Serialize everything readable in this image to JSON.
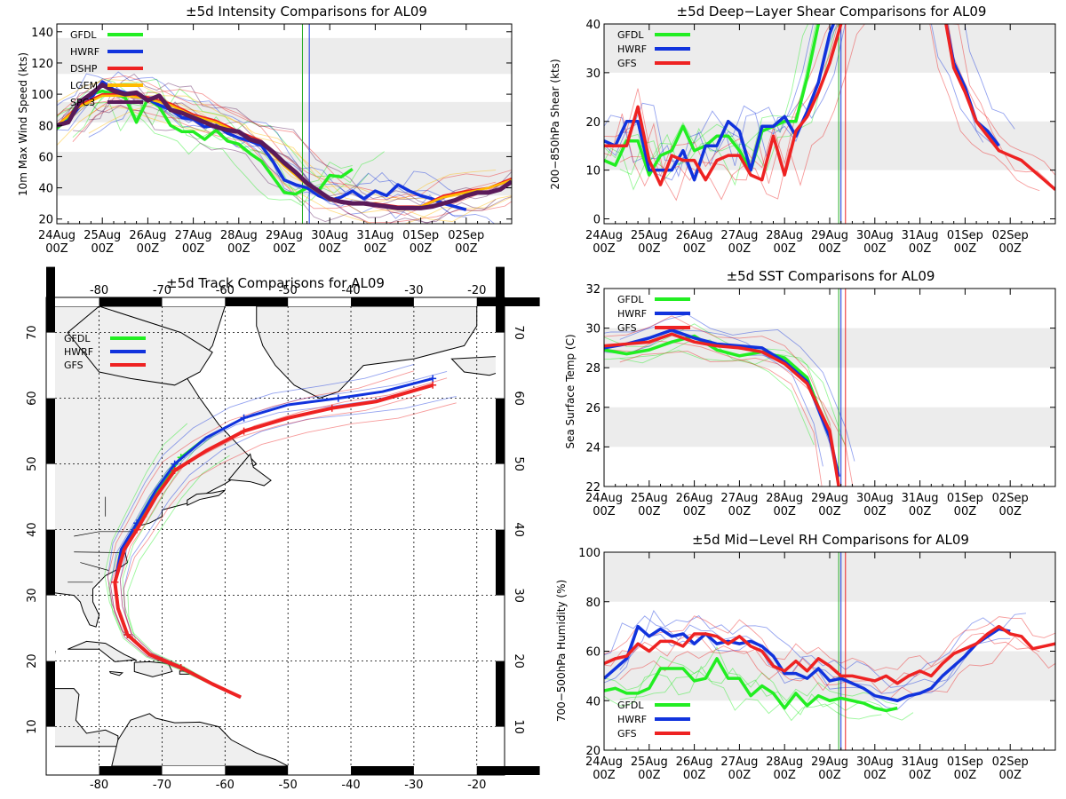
{
  "colors": {
    "GFDL": "#22ee22",
    "HWRF": "#1133dd",
    "DSHP": "#ee2222",
    "LGEM": "#ffbb00",
    "SPC3": "#5a1a5a",
    "GFS": "#ee2222"
  },
  "xlabels": [
    [
      "24Aug",
      "00Z"
    ],
    [
      "25Aug",
      "00Z"
    ],
    [
      "26Aug",
      "00Z"
    ],
    [
      "27Aug",
      "00Z"
    ],
    [
      "28Aug",
      "00Z"
    ],
    [
      "29Aug",
      "00Z"
    ],
    [
      "30Aug",
      "00Z"
    ],
    [
      "31Aug",
      "00Z"
    ],
    [
      "01Sep",
      "00Z"
    ],
    [
      "02Sep",
      "00Z"
    ]
  ],
  "chart_data": [
    {
      "id": "intensity",
      "type": "line",
      "title": "±5d Intensity Comparisons for AL09",
      "ylabel": "10m Max Wind Speed (kts)",
      "ylim": [
        17,
        145
      ],
      "yticks": [
        20,
        40,
        60,
        80,
        100,
        120,
        140
      ],
      "bands": [
        [
          35,
          63
        ],
        [
          82,
          95
        ],
        [
          113,
          136
        ]
      ],
      "xrange": [
        0,
        10
      ],
      "vlines": [
        5.4,
        5.55
      ],
      "legend": [
        "GFDL",
        "HWRF",
        "DSHP",
        "LGEM",
        "SPC3"
      ],
      "series": [
        {
          "name": "GFDL",
          "x": [
            0,
            0.25,
            0.5,
            0.75,
            1,
            1.25,
            1.5,
            1.75,
            2,
            2.25,
            2.5,
            2.75,
            3,
            3.25,
            3.5,
            3.75,
            4,
            4.25,
            4.5,
            4.75,
            5,
            5.25,
            5.5,
            5.75,
            6,
            6.25,
            6.5
          ],
          "values": [
            78,
            85,
            95,
            100,
            102,
            100,
            98,
            82,
            97,
            92,
            80,
            76,
            76,
            71,
            77,
            70,
            68,
            62,
            57,
            47,
            37,
            36,
            40,
            38,
            48,
            47,
            52
          ]
        },
        {
          "name": "HWRF",
          "x": [
            0,
            0.25,
            0.5,
            0.75,
            1,
            1.25,
            1.5,
            1.75,
            2,
            2.25,
            2.5,
            2.75,
            3,
            3.25,
            3.5,
            3.75,
            4,
            4.25,
            4.5,
            4.75,
            5,
            5.25,
            5.5,
            5.75,
            6,
            6.25,
            6.5,
            6.75,
            7,
            7.25,
            7.5,
            7.75,
            8,
            8.25,
            8.5,
            8.75,
            9
          ],
          "values": [
            80,
            83,
            92,
            97,
            108,
            103,
            101,
            99,
            97,
            93,
            90,
            85,
            84,
            79,
            80,
            75,
            72,
            70,
            67,
            57,
            45,
            42,
            40,
            35,
            32,
            34,
            38,
            33,
            38,
            35,
            42,
            38,
            35,
            33,
            30,
            28,
            26
          ]
        },
        {
          "name": "DSHP",
          "x": [
            0,
            0.5,
            1,
            1.5,
            2,
            2.5,
            3,
            3.5,
            4,
            4.5,
            5,
            5.5,
            6,
            6.5,
            7,
            7.5,
            8,
            8.5,
            9,
            9.5,
            10
          ],
          "values": [
            80,
            93,
            100,
            100,
            98,
            94,
            87,
            83,
            76,
            70,
            55,
            43,
            33,
            30,
            30,
            28,
            28,
            35,
            38,
            40,
            46
          ]
        },
        {
          "name": "LGEM",
          "x": [
            0,
            0.5,
            1,
            1.5,
            2,
            2.5,
            3,
            3.5,
            4,
            4.5,
            5,
            5.5,
            6,
            6.5,
            7,
            7.5,
            8,
            8.5,
            9,
            9.5,
            10
          ],
          "values": [
            80,
            92,
            99,
            99,
            97,
            93,
            86,
            82,
            75,
            69,
            54,
            42,
            32,
            30,
            29,
            27,
            28,
            34,
            37,
            40,
            45
          ]
        },
        {
          "name": "SPC3",
          "x": [
            0,
            0.25,
            0.5,
            0.75,
            1,
            1.25,
            1.5,
            1.75,
            2,
            2.25,
            2.5,
            2.75,
            3,
            3.25,
            3.5,
            3.75,
            4,
            4.25,
            4.5,
            4.75,
            5,
            5.25,
            5.5,
            5.75,
            6,
            6.25,
            6.5,
            6.75,
            7,
            7.25,
            7.5,
            7.75,
            8,
            8.25,
            8.5,
            8.75,
            9,
            9.25,
            9.5,
            9.75,
            10
          ],
          "values": [
            80,
            82,
            95,
            100,
            106,
            102,
            100,
            101,
            96,
            99,
            90,
            88,
            85,
            82,
            79,
            77,
            76,
            71,
            69,
            63,
            56,
            50,
            43,
            38,
            33,
            31,
            30,
            30,
            29,
            28,
            27,
            27,
            27,
            28,
            30,
            32,
            35,
            37,
            37,
            39,
            44
          ]
        }
      ]
    },
    {
      "id": "shear",
      "type": "line",
      "title": "±5d Deep−Layer Shear Comparisons for AL09",
      "ylabel": "200−850hPa Shear (kts)",
      "ylim": [
        -1,
        40
      ],
      "yticks": [
        0,
        10,
        20,
        30,
        40
      ],
      "bands": [
        [
          10,
          20
        ],
        [
          30,
          40
        ]
      ],
      "xrange": [
        0,
        10
      ],
      "vlines": [
        5.2,
        5.25,
        5.35
      ],
      "legend": [
        "GFDL",
        "HWRF",
        "GFS"
      ],
      "series": [
        {
          "name": "GFDL",
          "x": [
            0,
            0.25,
            0.5,
            0.75,
            1,
            1.25,
            1.5,
            1.75,
            2,
            2.25,
            2.5,
            2.75,
            3,
            3.25,
            3.5,
            3.75,
            4,
            4.25,
            4.5,
            4.75,
            5
          ],
          "values": [
            12,
            11,
            16,
            16,
            9,
            13,
            14,
            19,
            14,
            15,
            17,
            17,
            14,
            10,
            18,
            19,
            20,
            20,
            29,
            40,
            44
          ]
        },
        {
          "name": "HWRF",
          "x": [
            0,
            0.25,
            0.5,
            0.75,
            1,
            1.25,
            1.5,
            1.75,
            2,
            2.25,
            2.5,
            2.75,
            3,
            3.25,
            3.5,
            3.75,
            4,
            4.25,
            4.5,
            4.75,
            5,
            5.25,
            7.5,
            7.75,
            8,
            8.25,
            8.5,
            8.75
          ],
          "values": [
            16,
            15,
            20,
            20,
            10,
            10,
            10,
            14,
            8,
            15,
            15,
            20,
            18,
            10,
            19,
            19,
            21,
            17,
            22,
            28,
            38,
            44,
            44,
            32,
            27,
            20,
            18,
            15
          ]
        },
        {
          "name": "GFS",
          "x": [
            0,
            0.25,
            0.5,
            0.75,
            1,
            1.25,
            1.5,
            1.75,
            2,
            2.25,
            2.5,
            2.75,
            3,
            3.25,
            3.5,
            3.75,
            4,
            4.25,
            4.5,
            4.75,
            5,
            5.25,
            5.5,
            7.5,
            7.75,
            8,
            8.25,
            8.5,
            8.75,
            9,
            9.25,
            9.5,
            9.75,
            10
          ],
          "values": [
            15,
            15,
            15,
            23,
            12,
            7,
            13,
            12,
            12,
            8,
            12,
            13,
            13,
            9,
            8,
            17,
            9,
            18,
            21,
            26,
            32,
            40,
            44,
            44,
            31,
            26,
            20,
            17,
            14,
            13,
            12,
            10,
            8,
            6
          ]
        }
      ]
    },
    {
      "id": "sst",
      "type": "line",
      "title": "±5d SST Comparisons for AL09",
      "ylabel": "Sea Surface Temp (C)",
      "ylim": [
        22,
        32
      ],
      "yticks": [
        22,
        24,
        26,
        28,
        30,
        32
      ],
      "bands": [
        [
          24,
          26
        ],
        [
          28,
          30
        ]
      ],
      "xrange": [
        0,
        10
      ],
      "vlines": [
        5.2,
        5.25,
        5.35
      ],
      "legend": [
        "GFDL",
        "HWRF",
        "GFS"
      ],
      "series": [
        {
          "name": "GFDL",
          "x": [
            0,
            0.5,
            1,
            1.5,
            2,
            2.5,
            3,
            3.5,
            4,
            4.5,
            5
          ],
          "values": [
            28.9,
            28.7,
            28.9,
            29.3,
            29.6,
            28.9,
            28.6,
            28.8,
            28.5,
            27.5,
            24.5
          ]
        },
        {
          "name": "HWRF",
          "x": [
            0,
            0.5,
            1,
            1.5,
            2,
            2.5,
            3,
            3.5,
            4,
            4.5,
            5,
            5.2
          ],
          "values": [
            29.0,
            29.2,
            29.5,
            29.9,
            29.5,
            29.2,
            29.1,
            29.0,
            28.3,
            27.3,
            24.5,
            22.5
          ]
        },
        {
          "name": "GFS",
          "x": [
            0,
            0.5,
            1,
            1.5,
            2,
            2.5,
            3,
            3.5,
            4,
            4.5,
            5,
            5.2
          ],
          "values": [
            29.1,
            29.2,
            29.3,
            29.7,
            29.3,
            29.1,
            29.0,
            28.8,
            28.2,
            27.2,
            24.8,
            22.0
          ]
        }
      ]
    },
    {
      "id": "rh",
      "type": "line",
      "title": "±5d Mid−Level RH Comparisons for AL09",
      "ylabel": "700−500hPa Humidity (%)",
      "ylim": [
        20,
        100
      ],
      "yticks": [
        20,
        40,
        60,
        80,
        100
      ],
      "bands": [
        [
          40,
          60
        ],
        [
          80,
          100
        ]
      ],
      "xrange": [
        0,
        10
      ],
      "vlines": [
        5.2,
        5.25,
        5.35
      ],
      "legend": [
        "GFDL",
        "HWRF",
        "GFS"
      ],
      "series": [
        {
          "name": "GFDL",
          "x": [
            0,
            0.25,
            0.5,
            0.75,
            1,
            1.25,
            1.5,
            1.75,
            2,
            2.25,
            2.5,
            2.75,
            3,
            3.25,
            3.5,
            3.75,
            4,
            4.25,
            4.5,
            4.75,
            5,
            5.25,
            5.5,
            5.75,
            6,
            6.25,
            6.5
          ],
          "values": [
            44,
            45,
            43,
            43,
            45,
            53,
            53,
            53,
            48,
            49,
            57,
            49,
            49,
            42,
            46,
            43,
            37,
            43,
            38,
            42,
            40,
            41,
            40,
            39,
            37,
            36,
            37
          ]
        },
        {
          "name": "HWRF",
          "x": [
            0,
            0.25,
            0.5,
            0.75,
            1,
            1.25,
            1.5,
            1.75,
            2,
            2.25,
            2.5,
            2.75,
            3,
            3.25,
            3.5,
            3.75,
            4,
            4.25,
            4.5,
            4.75,
            5,
            5.25,
            5.5,
            5.75,
            6,
            6.25,
            6.5,
            6.75,
            7,
            7.25,
            7.5,
            7.75,
            8,
            8.25,
            8.5,
            8.75,
            9
          ],
          "values": [
            49,
            53,
            57,
            70,
            66,
            69,
            66,
            67,
            63,
            67,
            63,
            64,
            63,
            64,
            62,
            58,
            51,
            51,
            49,
            53,
            48,
            49,
            47,
            45,
            42,
            41,
            40,
            42,
            43,
            45,
            50,
            54,
            58,
            63,
            66,
            69,
            68
          ]
        },
        {
          "name": "GFS",
          "x": [
            0,
            0.25,
            0.5,
            0.75,
            1,
            1.25,
            1.5,
            1.75,
            2,
            2.25,
            2.5,
            2.75,
            3,
            3.25,
            3.5,
            3.75,
            4,
            4.25,
            4.5,
            4.75,
            5,
            5.25,
            5.5,
            5.75,
            6,
            6.25,
            6.5,
            6.75,
            7,
            7.25,
            7.5,
            7.75,
            8,
            8.25,
            8.5,
            8.75,
            9,
            9.25,
            9.5,
            9.75,
            10
          ],
          "values": [
            55,
            57,
            58,
            63,
            60,
            64,
            64,
            62,
            67,
            67,
            66,
            63,
            66,
            62,
            60,
            54,
            52,
            56,
            52,
            57,
            54,
            50,
            50,
            49,
            48,
            50,
            47,
            50,
            52,
            50,
            55,
            59,
            61,
            63,
            67,
            70,
            67,
            66,
            61,
            62,
            63
          ]
        }
      ]
    },
    {
      "id": "track",
      "type": "scatter",
      "title": "±5d Track Comparisons for AL09",
      "xticks": [
        -80,
        -70,
        -60,
        -50,
        -40,
        -30,
        -20
      ],
      "yticks": [
        10,
        20,
        30,
        40,
        50,
        60,
        70
      ],
      "xlim": [
        -87,
        -17
      ],
      "ylim": [
        4,
        74
      ],
      "legend": [
        "GFDL",
        "HWRF",
        "GFS"
      ],
      "series": [
        {
          "name": "GFDL",
          "lon": [
            -57.5,
            -62,
            -67,
            -72,
            -75.5,
            -77,
            -77.5,
            -76,
            -73,
            -70,
            -67,
            -63
          ],
          "lat": [
            14.5,
            16.5,
            19,
            21,
            24,
            28,
            32,
            37,
            42,
            47,
            51,
            54
          ]
        },
        {
          "name": "HWRF",
          "lon": [
            -57.5,
            -62,
            -67,
            -72,
            -75.5,
            -77,
            -77.5,
            -76.5,
            -74,
            -71,
            -68,
            -63,
            -57,
            -50,
            -42,
            -35,
            -27
          ],
          "lat": [
            14.5,
            16.5,
            19,
            21,
            24,
            28,
            32,
            37,
            41,
            46,
            50,
            54,
            57,
            59,
            60,
            61,
            63
          ]
        },
        {
          "name": "GFS",
          "lon": [
            -57.5,
            -62,
            -67,
            -72,
            -75.5,
            -77,
            -77.5,
            -76,
            -74,
            -71,
            -68,
            -63,
            -57,
            -50,
            -43,
            -36,
            -27
          ],
          "lat": [
            14.5,
            16.5,
            19,
            21,
            24,
            28,
            32,
            37,
            40,
            45,
            49,
            52,
            55,
            57,
            58.5,
            59.5,
            62
          ]
        }
      ]
    }
  ]
}
